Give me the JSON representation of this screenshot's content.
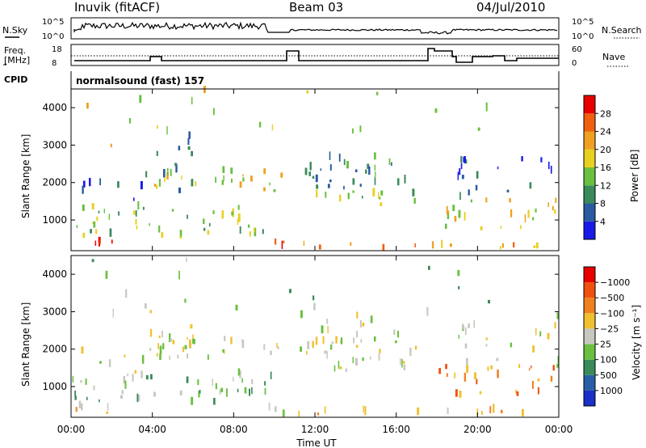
{
  "header": {
    "station": "Inuvik  (fitACF)",
    "beam": "Beam 03",
    "date": "04/Jul/2010"
  },
  "top_panels": {
    "nsky_label": "N.Sky",
    "nsearch_label": "N.Search",
    "nsky_ticks": [
      "10^5",
      "10^0"
    ],
    "nsearch_ticks": [
      "10^5",
      "10^0"
    ],
    "freq_label_1": "Freq.",
    "freq_label_2": "[MHz]",
    "freq_ticks": [
      "18",
      "8"
    ],
    "nave_label": "Nave",
    "nave_ticks": [
      "60",
      "0"
    ],
    "cpid_label": "CPID",
    "cpid_value": "normalsound (fast) 157"
  },
  "chart_data": [
    {
      "type": "heatmap",
      "name": "power",
      "ylabel": "Slant Range [km]",
      "yticks": [
        "1000",
        "2000",
        "3000",
        "4000"
      ],
      "ylim": [
        180,
        4500
      ],
      "colorbar_label": "Power [dB]",
      "colorbar_ticks": [
        "4",
        "8",
        "12",
        "16",
        "20",
        "24",
        "28"
      ],
      "colorbar_colors": [
        "#1a1ae6",
        "#2a5aa0",
        "#3a8a5a",
        "#6ac040",
        "#e8d020",
        "#f0a020",
        "#f06010",
        "#e80000"
      ]
    },
    {
      "type": "heatmap",
      "name": "velocity",
      "ylabel": "Slant Range [km]",
      "yticks": [
        "1000",
        "2000",
        "3000",
        "4000"
      ],
      "ylim": [
        180,
        4500
      ],
      "colorbar_label": "Velocity  [m s⁻¹]",
      "colorbar_ticks": [
        "1000",
        "500",
        "100",
        "25",
        "−25",
        "−100",
        "−500",
        "−1000"
      ],
      "colorbar_colors": [
        "#1a30c8",
        "#2860a8",
        "#3a8a5a",
        "#6ac040",
        "#c8c8c0",
        "#f0c030",
        "#f08020",
        "#f05010",
        "#e80000"
      ]
    }
  ],
  "xaxis": {
    "label": "Time UT",
    "ticks": [
      "00:00",
      "04:00",
      "08:00",
      "12:00",
      "16:00",
      "20:00",
      "00:00"
    ]
  }
}
